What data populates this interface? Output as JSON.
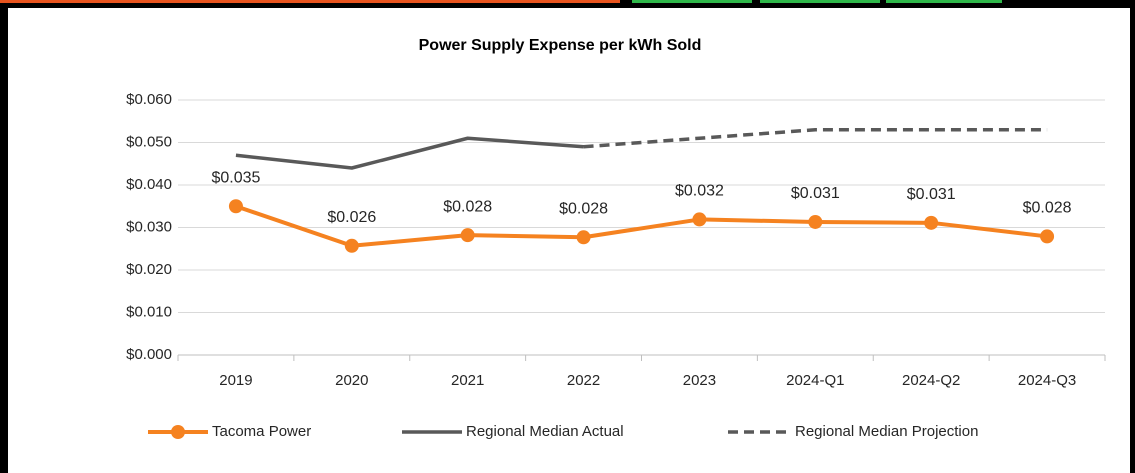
{
  "chart_data": {
    "type": "line",
    "title": "Power Supply Expense per kWh Sold",
    "categories": [
      "2019",
      "2020",
      "2021",
      "2022",
      "2023",
      "2024-Q1",
      "2024-Q2",
      "2024-Q3"
    ],
    "series": [
      {
        "name": "Tacoma Power",
        "color": "#f58220",
        "style": "solid",
        "markers": true,
        "values": [
          0.035,
          0.0257,
          0.0282,
          0.0277,
          0.0319,
          0.0313,
          0.0311,
          0.0279
        ],
        "value_labels": [
          "$0.035",
          "$0.026",
          "$0.028",
          "$0.028",
          "$0.032",
          "$0.031",
          "$0.031",
          "$0.028"
        ]
      },
      {
        "name": "Regional Median Actual",
        "color": "#595959",
        "style": "solid",
        "markers": false,
        "values": [
          0.047,
          0.044,
          0.051,
          0.049,
          null,
          null,
          null,
          null
        ]
      },
      {
        "name": "Regional Median Projection",
        "color": "#595959",
        "style": "dashed",
        "markers": false,
        "values": [
          null,
          null,
          null,
          0.049,
          0.051,
          0.053,
          0.053,
          0.053
        ]
      }
    ],
    "ylim": [
      0,
      0.06
    ],
    "yticks": [
      {
        "value": 0,
        "label": "$0.000"
      },
      {
        "value": 0.01,
        "label": "$0.010"
      },
      {
        "value": 0.02,
        "label": "$0.020"
      },
      {
        "value": 0.03,
        "label": "$0.030"
      },
      {
        "value": 0.04,
        "label": "$0.040"
      },
      {
        "value": 0.05,
        "label": "$0.050"
      },
      {
        "value": 0.06,
        "label": "$0.060"
      }
    ],
    "grid": true,
    "legend": "bottom"
  }
}
